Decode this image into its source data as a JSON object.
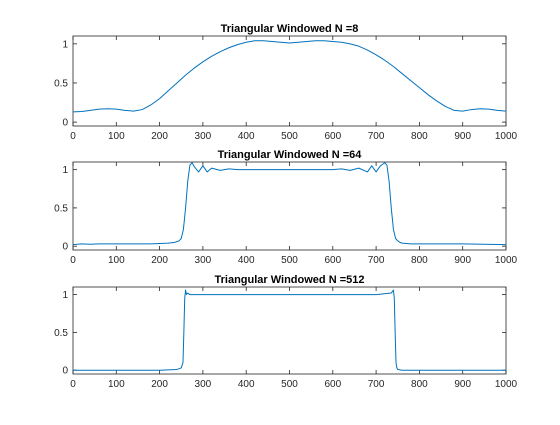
{
  "chart_data": [
    {
      "type": "line",
      "title": "Triangular Windowed N =8",
      "xlabel": "",
      "ylabel": "",
      "xlim": [
        0,
        1000
      ],
      "ylim": [
        -0.05,
        1.1
      ],
      "xticks": [
        0,
        100,
        200,
        300,
        400,
        500,
        600,
        700,
        800,
        900,
        1000
      ],
      "yticks": [
        0,
        0.5,
        1
      ],
      "ytick_labels": [
        "0",
        "0.5",
        "1"
      ],
      "grid": false,
      "color": "#0072bd",
      "series": [
        {
          "x": [
            0,
            20,
            40,
            60,
            80,
            100,
            120,
            140,
            160,
            180,
            200,
            220,
            240,
            260,
            280,
            300,
            320,
            340,
            360,
            380,
            400,
            420,
            440,
            460,
            480,
            500,
            520,
            540,
            560,
            580,
            600,
            620,
            640,
            660,
            680,
            700,
            720,
            740,
            760,
            780,
            800,
            820,
            840,
            860,
            880,
            900,
            920,
            940,
            960,
            980,
            1000
          ],
          "y": [
            0.13,
            0.135,
            0.15,
            0.165,
            0.17,
            0.165,
            0.15,
            0.14,
            0.16,
            0.22,
            0.3,
            0.4,
            0.5,
            0.6,
            0.69,
            0.77,
            0.84,
            0.9,
            0.95,
            0.99,
            1.02,
            1.04,
            1.04,
            1.03,
            1.02,
            1.01,
            1.02,
            1.03,
            1.04,
            1.04,
            1.03,
            1.02,
            1.0,
            0.97,
            0.92,
            0.86,
            0.79,
            0.71,
            0.62,
            0.53,
            0.44,
            0.35,
            0.27,
            0.2,
            0.15,
            0.14,
            0.16,
            0.17,
            0.165,
            0.15,
            0.14
          ]
        }
      ]
    },
    {
      "type": "line",
      "title": "Triangular Windowed N =64",
      "xlabel": "",
      "ylabel": "",
      "xlim": [
        0,
        1000
      ],
      "ylim": [
        -0.05,
        1.1
      ],
      "xticks": [
        0,
        100,
        200,
        300,
        400,
        500,
        600,
        700,
        800,
        900,
        1000
      ],
      "yticks": [
        0,
        0.5,
        1
      ],
      "ytick_labels": [
        "0",
        "0.5",
        "1"
      ],
      "grid": false,
      "color": "#0072bd",
      "series": [
        {
          "x": [
            0,
            20,
            40,
            60,
            80,
            100,
            120,
            140,
            160,
            180,
            200,
            220,
            235,
            245,
            250,
            255,
            260,
            265,
            270,
            275,
            280,
            290,
            300,
            310,
            320,
            340,
            360,
            380,
            400,
            450,
            500,
            550,
            600,
            620,
            640,
            660,
            680,
            690,
            700,
            710,
            720,
            725,
            730,
            735,
            740,
            745,
            750,
            755,
            760,
            770,
            780,
            800,
            850,
            900,
            950,
            1000
          ],
          "y": [
            0.02,
            0.03,
            0.025,
            0.03,
            0.03,
            0.03,
            0.03,
            0.03,
            0.03,
            0.03,
            0.035,
            0.04,
            0.05,
            0.07,
            0.1,
            0.22,
            0.5,
            0.85,
            1.06,
            1.09,
            1.04,
            0.97,
            1.05,
            0.97,
            1.02,
            0.99,
            1.01,
            1.0,
            1.0,
            1.0,
            1.0,
            1.0,
            1.0,
            1.01,
            0.99,
            1.02,
            0.97,
            1.05,
            0.97,
            1.05,
            1.09,
            1.06,
            0.85,
            0.5,
            0.22,
            0.1,
            0.07,
            0.05,
            0.04,
            0.035,
            0.03,
            0.03,
            0.03,
            0.03,
            0.025,
            0.02
          ]
        }
      ]
    },
    {
      "type": "line",
      "title": "Triangular Windowed N =512",
      "xlabel": "",
      "ylabel": "",
      "xlim": [
        0,
        1000
      ],
      "ylim": [
        -0.05,
        1.1
      ],
      "xticks": [
        0,
        100,
        200,
        300,
        400,
        500,
        600,
        700,
        800,
        900,
        1000
      ],
      "yticks": [
        0,
        0.5,
        1
      ],
      "ytick_labels": [
        "0",
        "0.5",
        "1"
      ],
      "grid": false,
      "color": "#0072bd",
      "series": [
        {
          "x": [
            0,
            50,
            100,
            150,
            200,
            240,
            250,
            254,
            256,
            258,
            260,
            262,
            265,
            270,
            300,
            350,
            400,
            450,
            500,
            550,
            600,
            650,
            700,
            735,
            740,
            742,
            744,
            746,
            748,
            750,
            760,
            800,
            850,
            900,
            950,
            1000
          ],
          "y": [
            0.0,
            0.0,
            0.0,
            0.0,
            0.0,
            0.01,
            0.03,
            0.1,
            0.5,
            0.95,
            1.06,
            1.0,
            1.02,
            1.0,
            1.0,
            1.0,
            1.0,
            1.0,
            1.0,
            1.0,
            1.0,
            1.0,
            1.0,
            1.02,
            1.06,
            0.95,
            0.5,
            0.1,
            0.03,
            0.01,
            0.0,
            0.0,
            0.0,
            0.0,
            0.0,
            0.0
          ]
        }
      ]
    }
  ]
}
